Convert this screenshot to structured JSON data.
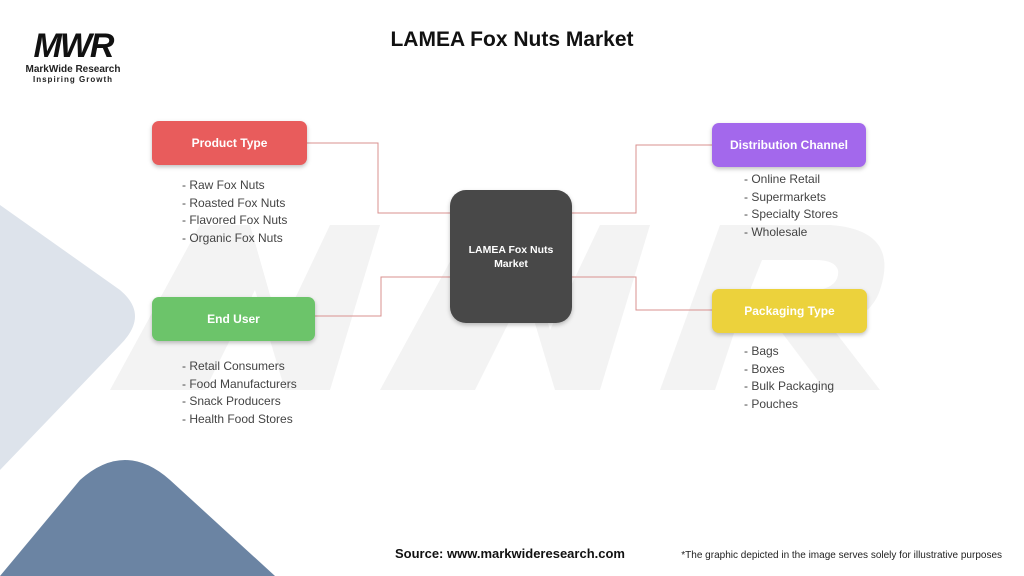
{
  "title": "LAMEA Fox Nuts Market",
  "logo": {
    "mark": "MWR",
    "name": "MarkWide Research",
    "tagline": "Inspiring Growth"
  },
  "center": {
    "label": "LAMEA Fox Nuts Market"
  },
  "nodes": [
    {
      "label": "Product Type",
      "color": "#e85c5c",
      "items": [
        "- Raw Fox Nuts",
        "- Roasted Fox Nuts",
        "- Flavored Fox Nuts",
        "- Organic Fox Nuts"
      ]
    },
    {
      "label": "End User",
      "color": "#6cc46a",
      "items": [
        "- Retail Consumers",
        "- Food Manufacturers",
        "- Snack Producers",
        "- Health Food Stores"
      ]
    },
    {
      "label": "Distribution Channel",
      "color": "#a368ec",
      "items": [
        "- Online Retail",
        "- Supermarkets",
        "- Specialty Stores",
        "- Wholesale"
      ]
    },
    {
      "label": "Packaging Type",
      "color": "#ecd23c",
      "items": [
        "- Bags",
        "- Boxes",
        "- Bulk Packaging",
        "- Pouches"
      ]
    }
  ],
  "connector_color": "#d9908f",
  "source": "Source: www.markwideresearch.com",
  "note": "*The graphic depicted in the image serves solely for illustrative purposes"
}
